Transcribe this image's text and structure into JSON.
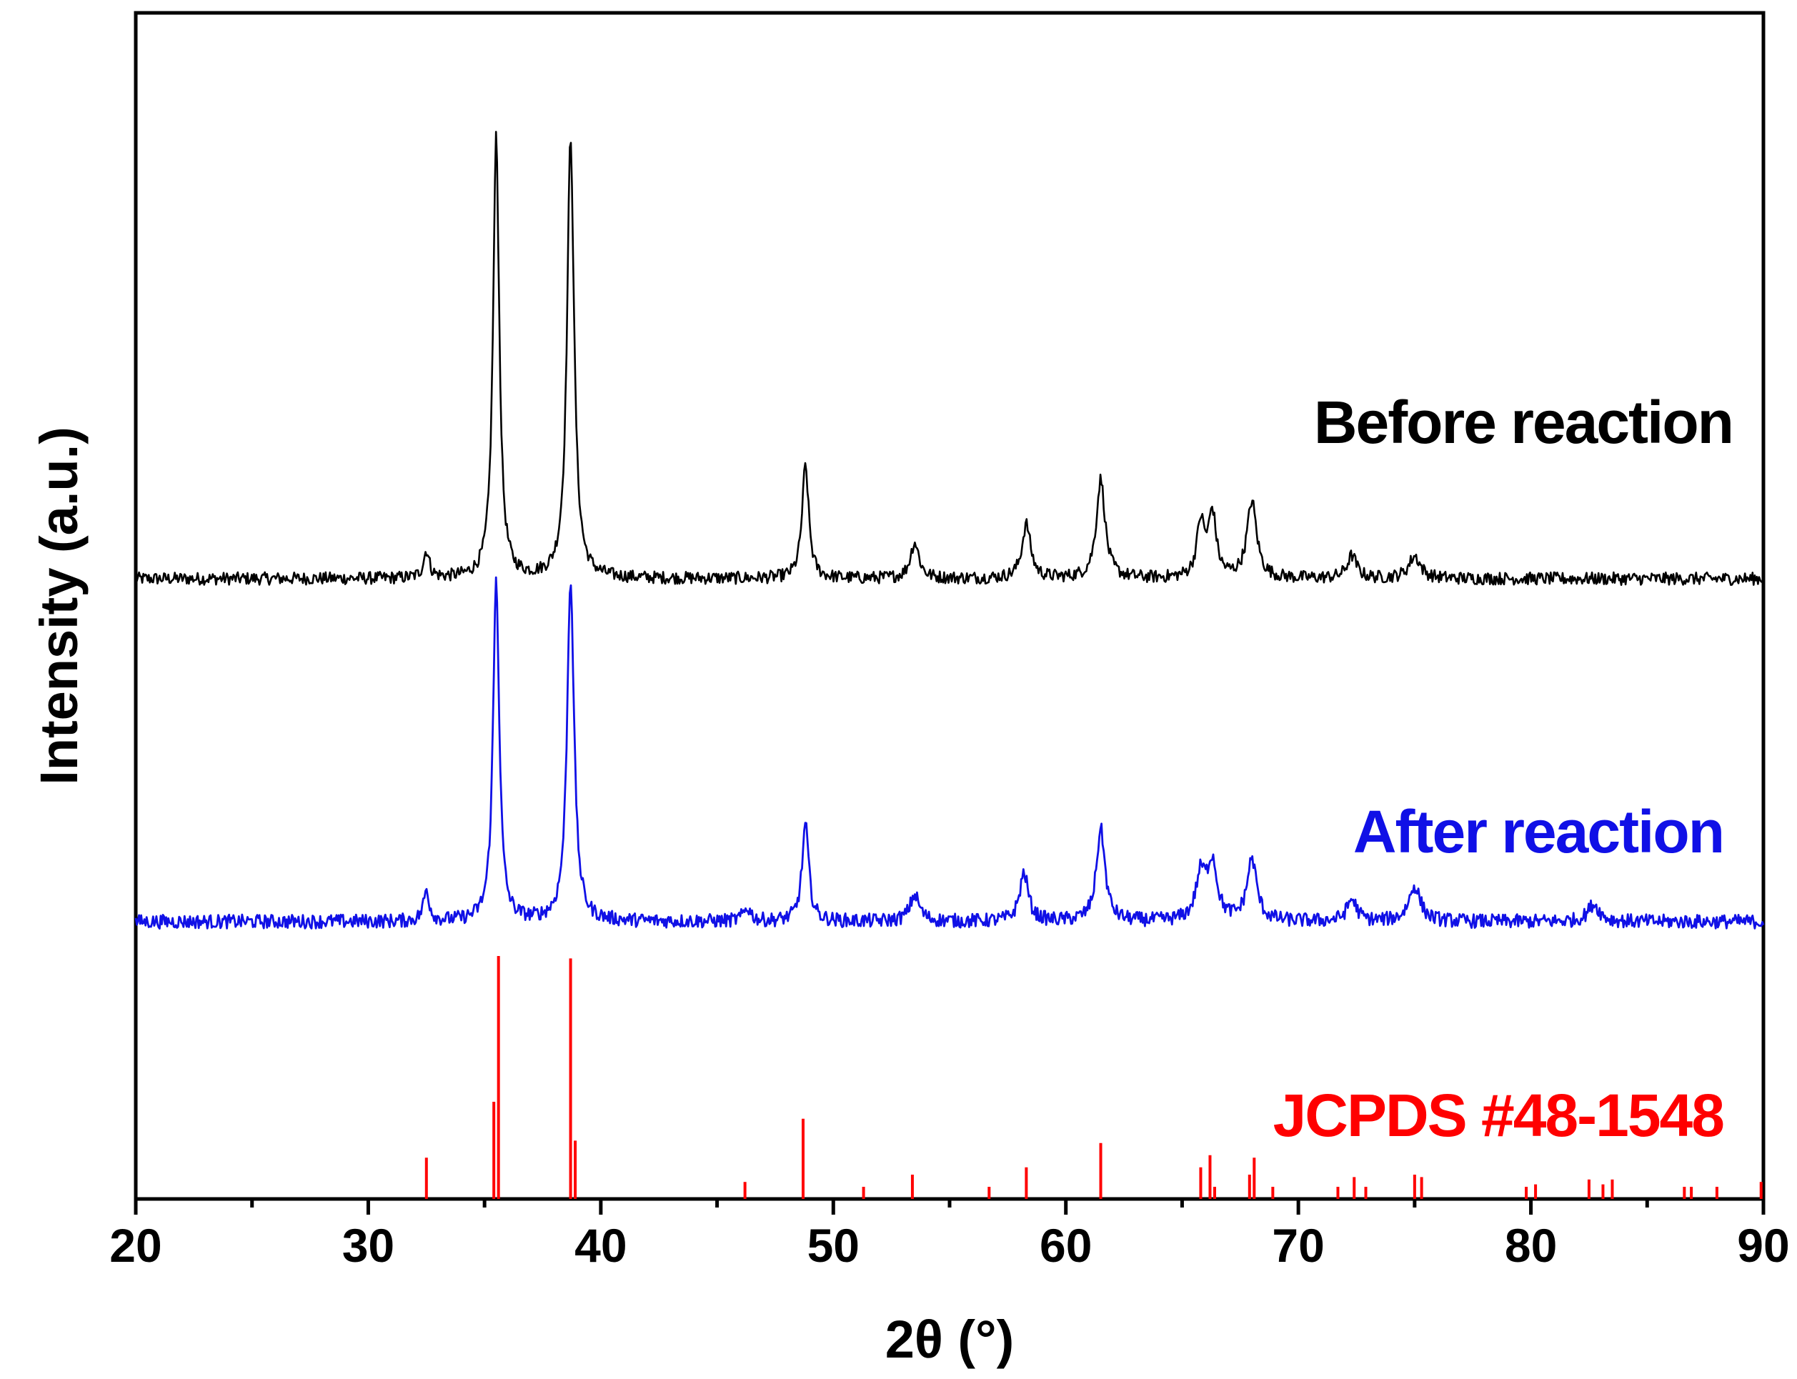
{
  "chart_data": {
    "type": "line",
    "title": "",
    "xlabel": "2θ (°)",
    "ylabel": "Intensity (a.u.)",
    "xlim": [
      20,
      90
    ],
    "x_ticks": [
      20,
      30,
      40,
      50,
      60,
      70,
      80,
      90
    ],
    "x_minor_step": 5,
    "grid": false,
    "y_ticks_shown": false,
    "series": [
      {
        "name": "Before reaction",
        "color": "#000000",
        "baseline": 0.75,
        "noise": 0.014,
        "peaks": [
          {
            "x": 32.5,
            "height": 0.06,
            "width": 0.3
          },
          {
            "x": 35.5,
            "height": 0.98,
            "width": 0.32
          },
          {
            "x": 38.7,
            "height": 0.98,
            "width": 0.36
          },
          {
            "x": 48.8,
            "height": 0.25,
            "width": 0.35
          },
          {
            "x": 53.5,
            "height": 0.08,
            "width": 0.45
          },
          {
            "x": 58.3,
            "height": 0.12,
            "width": 0.45
          },
          {
            "x": 61.5,
            "height": 0.22,
            "width": 0.45
          },
          {
            "x": 65.8,
            "height": 0.12,
            "width": 0.4
          },
          {
            "x": 66.3,
            "height": 0.14,
            "width": 0.4
          },
          {
            "x": 68.0,
            "height": 0.17,
            "width": 0.5
          },
          {
            "x": 72.3,
            "height": 0.05,
            "width": 0.5
          },
          {
            "x": 75.0,
            "height": 0.05,
            "width": 0.6
          }
        ]
      },
      {
        "name": "After reaction",
        "color": "#1010e6",
        "baseline": 0.0,
        "noise": 0.016,
        "peaks": [
          {
            "x": 32.5,
            "height": 0.07,
            "width": 0.3
          },
          {
            "x": 35.5,
            "height": 0.78,
            "width": 0.32
          },
          {
            "x": 38.7,
            "height": 0.78,
            "width": 0.36
          },
          {
            "x": 46.3,
            "height": 0.03,
            "width": 0.4
          },
          {
            "x": 48.8,
            "height": 0.22,
            "width": 0.35
          },
          {
            "x": 53.5,
            "height": 0.06,
            "width": 0.5
          },
          {
            "x": 58.2,
            "height": 0.11,
            "width": 0.45
          },
          {
            "x": 61.5,
            "height": 0.21,
            "width": 0.45
          },
          {
            "x": 65.8,
            "height": 0.1,
            "width": 0.5
          },
          {
            "x": 66.3,
            "height": 0.13,
            "width": 0.5
          },
          {
            "x": 68.0,
            "height": 0.14,
            "width": 0.5
          },
          {
            "x": 72.3,
            "height": 0.05,
            "width": 0.5
          },
          {
            "x": 75.0,
            "height": 0.08,
            "width": 0.6
          },
          {
            "x": 82.7,
            "height": 0.04,
            "width": 0.6
          }
        ]
      }
    ],
    "reference": {
      "name": "JCPDS #48-1548",
      "color": "#ff0000",
      "sticks": [
        {
          "x": 32.5,
          "intensity": 0.17
        },
        {
          "x": 35.4,
          "intensity": 0.4
        },
        {
          "x": 35.6,
          "intensity": 1.0
        },
        {
          "x": 38.7,
          "intensity": 0.99
        },
        {
          "x": 38.9,
          "intensity": 0.24
        },
        {
          "x": 46.2,
          "intensity": 0.07
        },
        {
          "x": 48.7,
          "intensity": 0.33
        },
        {
          "x": 51.3,
          "intensity": 0.05
        },
        {
          "x": 53.4,
          "intensity": 0.1
        },
        {
          "x": 56.7,
          "intensity": 0.05
        },
        {
          "x": 58.3,
          "intensity": 0.13
        },
        {
          "x": 61.5,
          "intensity": 0.23
        },
        {
          "x": 65.8,
          "intensity": 0.13
        },
        {
          "x": 66.2,
          "intensity": 0.18
        },
        {
          "x": 66.4,
          "intensity": 0.05
        },
        {
          "x": 67.9,
          "intensity": 0.1
        },
        {
          "x": 68.1,
          "intensity": 0.17
        },
        {
          "x": 68.9,
          "intensity": 0.05
        },
        {
          "x": 71.7,
          "intensity": 0.05
        },
        {
          "x": 72.4,
          "intensity": 0.09
        },
        {
          "x": 72.9,
          "intensity": 0.05
        },
        {
          "x": 75.0,
          "intensity": 0.1
        },
        {
          "x": 75.3,
          "intensity": 0.09
        },
        {
          "x": 79.8,
          "intensity": 0.05
        },
        {
          "x": 80.2,
          "intensity": 0.06
        },
        {
          "x": 82.5,
          "intensity": 0.08
        },
        {
          "x": 83.1,
          "intensity": 0.06
        },
        {
          "x": 83.5,
          "intensity": 0.08
        },
        {
          "x": 86.6,
          "intensity": 0.05
        },
        {
          "x": 86.9,
          "intensity": 0.05
        },
        {
          "x": 88.0,
          "intensity": 0.05
        },
        {
          "x": 89.9,
          "intensity": 0.07
        }
      ]
    }
  }
}
